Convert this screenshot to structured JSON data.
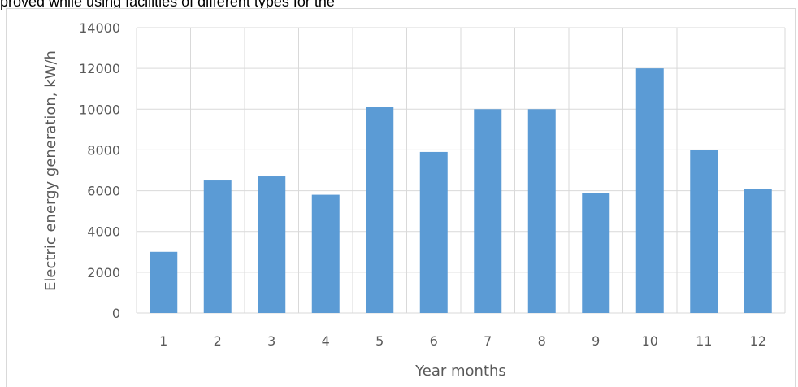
{
  "caption_fragment": "proved while using facilities of different types for the",
  "chart_data": {
    "type": "bar",
    "categories": [
      "1",
      "2",
      "3",
      "4",
      "5",
      "6",
      "7",
      "8",
      "9",
      "10",
      "11",
      "12"
    ],
    "values": [
      3000,
      6500,
      6700,
      5800,
      10100,
      7900,
      10000,
      10000,
      5900,
      12000,
      8000,
      6100
    ],
    "xlabel": "Year months",
    "ylabel": "Electric energy generation, kW/h",
    "ylim": [
      0,
      14000
    ],
    "yticks": [
      "0",
      "2000",
      "4000",
      "6000",
      "8000",
      "10000",
      "12000",
      "14000"
    ],
    "grid": true,
    "bar_color": "#5b9bd5",
    "grid_color": "#d9d9d9"
  }
}
